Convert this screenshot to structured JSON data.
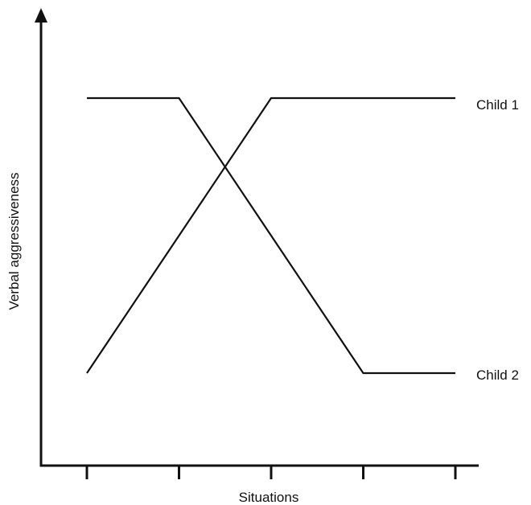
{
  "chart_data": {
    "type": "line",
    "title": "",
    "xlabel": "Situations",
    "ylabel": "Verbal aggressiveness",
    "x": [
      1,
      2,
      3,
      4,
      5
    ],
    "xlim": [
      0.5,
      5.5
    ],
    "ylim": [
      0,
      1
    ],
    "grid": false,
    "series": [
      {
        "name": "Child 1",
        "values": [
          0.2,
          0.5,
          0.8,
          0.8,
          0.8
        ]
      },
      {
        "name": "Child 2",
        "values": [
          0.8,
          0.8,
          0.5,
          0.2,
          0.2
        ]
      }
    ],
    "series_labels": [
      {
        "text": "Child 1",
        "attach_series": 0
      },
      {
        "text": "Child 2",
        "attach_series": 1
      }
    ],
    "colors": {
      "axis": "#111111",
      "line": "#111111"
    }
  }
}
